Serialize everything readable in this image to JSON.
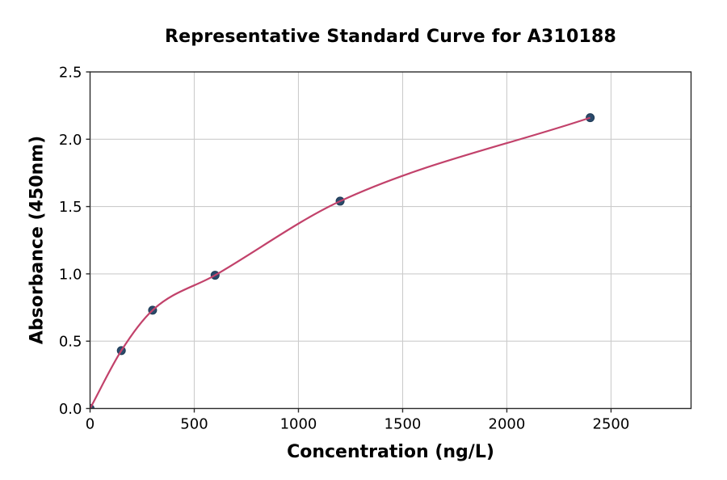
{
  "figure": {
    "background": "#ffffff"
  },
  "chart_data": {
    "type": "scatter",
    "title": "Representative Standard Curve for A310188",
    "xlabel": "Concentration (ng/L)",
    "ylabel": "Absorbance (450nm)",
    "points": [
      {
        "x": 0,
        "y": 0.0
      },
      {
        "x": 150,
        "y": 0.43
      },
      {
        "x": 300,
        "y": 0.73
      },
      {
        "x": 600,
        "y": 0.99
      },
      {
        "x": 1200,
        "y": 1.54
      },
      {
        "x": 2400,
        "y": 2.16
      }
    ],
    "fit": "smooth saturation curve through the standard points, drawn from 0 to 2400",
    "xlim": [
      0,
      2884
    ],
    "ylim": [
      0,
      2.5
    ],
    "xticks": [
      0,
      500,
      1000,
      1500,
      2000,
      2500
    ],
    "yticks": [
      0,
      0.5,
      1.0,
      1.5,
      2.0,
      2.5
    ],
    "ytick_decimals": 1,
    "grid": true,
    "legend": false,
    "colors": {
      "curve": "#c2426b",
      "marker": "#2a4a6b",
      "marker_edge": "#1f3a55",
      "grid": "#cccccc",
      "spine": "#2a2a2a",
      "text": "#000000",
      "background": "#ffffff"
    }
  }
}
